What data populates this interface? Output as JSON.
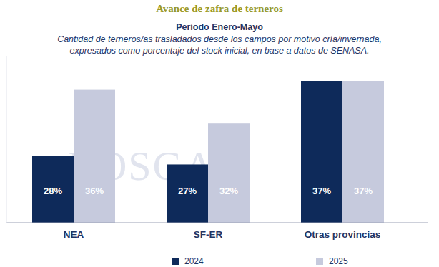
{
  "chart_data": {
    "type": "bar",
    "title": "Avance de zafra de terneros",
    "subtitle": "Período Enero-Mayo",
    "description": "Cantidad de terneros/as trasladados desde los campos por motivo cría/invernada, expresados como porcentaje del stock inicial, en base a datos de SENASA.",
    "watermark": "ROSGAN",
    "categories": [
      "NEA",
      "SF-ER",
      "Otras provincias"
    ],
    "series": [
      {
        "name": "2024",
        "color": "#0e2a5a",
        "values": [
          28,
          27,
          37
        ],
        "value_labels": [
          "28%",
          "27%",
          "37%"
        ]
      },
      {
        "name": "2025",
        "color": "#c6cadd",
        "values": [
          36,
          32,
          37
        ],
        "value_labels": [
          "36%",
          "32%",
          "37%"
        ]
      }
    ],
    "ylim": [
      20,
      40
    ],
    "data_labels": true,
    "tick_labels": "x",
    "legend": "bottom",
    "grid": false
  }
}
